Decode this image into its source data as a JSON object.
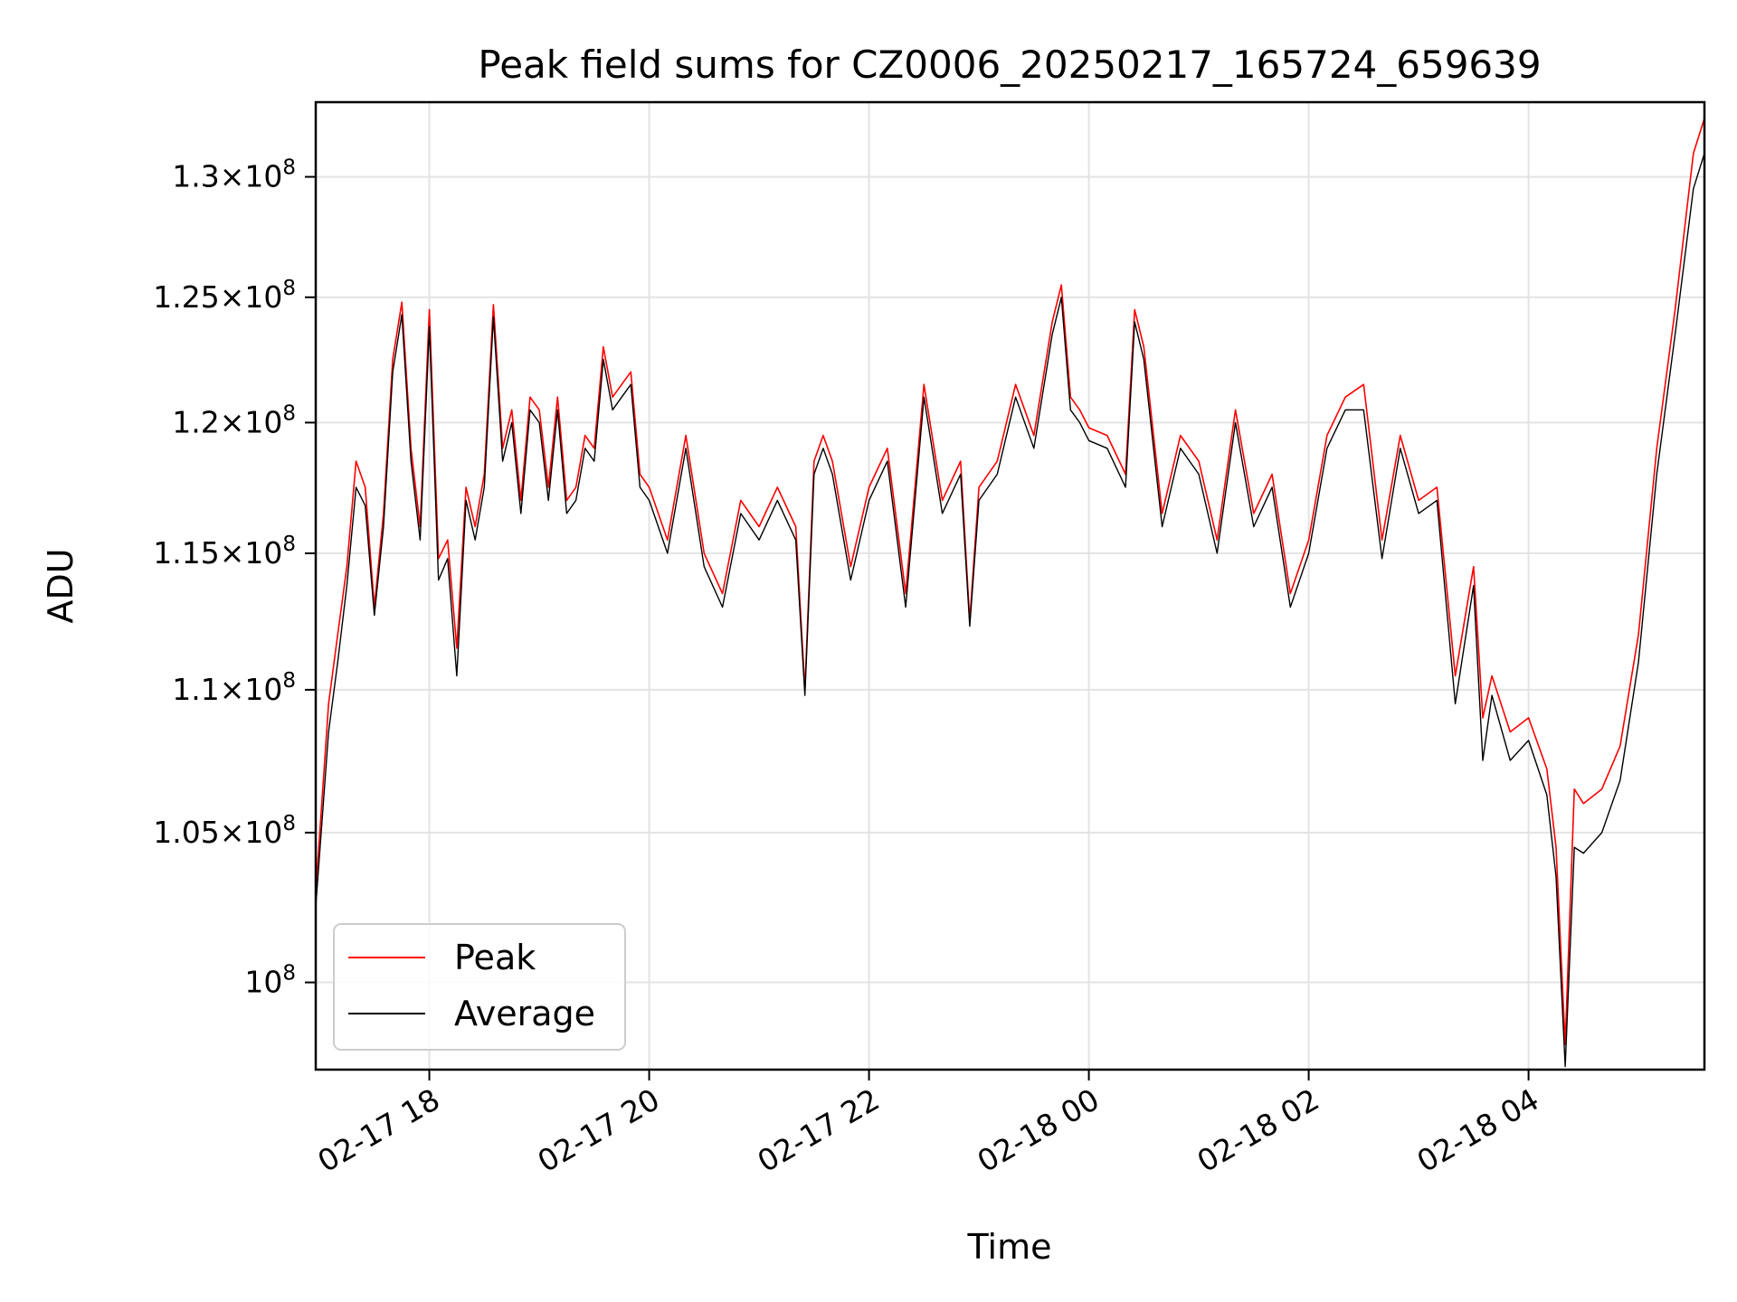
{
  "chart_data": {
    "type": "line",
    "title": "Peak field sums for CZ0006_20250217_165724_659639",
    "xlabel": "Time",
    "ylabel": "ADU",
    "y_scale": "log",
    "ylim": [
      97200000,
      133200000
    ],
    "xlim": [
      "02-17 16:58",
      "02-18 05:36"
    ],
    "grid": true,
    "legend_position": "lower-left",
    "x_ticks": [
      {
        "value": "02-17 18:00",
        "label": "02-17 18"
      },
      {
        "value": "02-17 20:00",
        "label": "02-17 20"
      },
      {
        "value": "02-17 22:00",
        "label": "02-17 22"
      },
      {
        "value": "02-18 00:00",
        "label": "02-18 00"
      },
      {
        "value": "02-18 02:00",
        "label": "02-18 02"
      },
      {
        "value": "02-18 04:00",
        "label": "02-18 04"
      }
    ],
    "y_ticks": [
      {
        "value": 100000000,
        "mant": "",
        "exp": "8"
      },
      {
        "value": 105000000,
        "mant": "1.05",
        "exp": "8"
      },
      {
        "value": 110000000,
        "mant": "1.1",
        "exp": "8"
      },
      {
        "value": 115000000,
        "mant": "1.15",
        "exp": "8"
      },
      {
        "value": 120000000,
        "mant": "1.2",
        "exp": "8"
      },
      {
        "value": 125000000,
        "mant": "1.25",
        "exp": "8"
      },
      {
        "value": 130000000,
        "mant": "1.3",
        "exp": "8"
      }
    ],
    "times": [
      "02-17 16:58",
      "02-17 17:05",
      "02-17 17:10",
      "02-17 17:15",
      "02-17 17:20",
      "02-17 17:25",
      "02-17 17:30",
      "02-17 17:35",
      "02-17 17:40",
      "02-17 17:45",
      "02-17 17:50",
      "02-17 17:55",
      "02-17 18:00",
      "02-17 18:05",
      "02-17 18:10",
      "02-17 18:15",
      "02-17 18:20",
      "02-17 18:25",
      "02-17 18:30",
      "02-17 18:35",
      "02-17 18:40",
      "02-17 18:45",
      "02-17 18:50",
      "02-17 18:55",
      "02-17 19:00",
      "02-17 19:05",
      "02-17 19:10",
      "02-17 19:15",
      "02-17 19:20",
      "02-17 19:25",
      "02-17 19:30",
      "02-17 19:35",
      "02-17 19:40",
      "02-17 19:45",
      "02-17 19:50",
      "02-17 19:55",
      "02-17 20:00",
      "02-17 20:10",
      "02-17 20:20",
      "02-17 20:30",
      "02-17 20:40",
      "02-17 20:50",
      "02-17 21:00",
      "02-17 21:10",
      "02-17 21:20",
      "02-17 21:25",
      "02-17 21:30",
      "02-17 21:35",
      "02-17 21:40",
      "02-17 21:50",
      "02-17 22:00",
      "02-17 22:10",
      "02-17 22:20",
      "02-17 22:30",
      "02-17 22:40",
      "02-17 22:50",
      "02-17 22:55",
      "02-17 23:00",
      "02-17 23:10",
      "02-17 23:20",
      "02-17 23:30",
      "02-17 23:40",
      "02-17 23:45",
      "02-17 23:50",
      "02-17 23:55",
      "02-18 00:00",
      "02-18 00:10",
      "02-18 00:20",
      "02-18 00:25",
      "02-18 00:30",
      "02-18 00:40",
      "02-18 00:50",
      "02-18 01:00",
      "02-18 01:10",
      "02-18 01:20",
      "02-18 01:30",
      "02-18 01:40",
      "02-18 01:50",
      "02-18 02:00",
      "02-18 02:10",
      "02-18 02:20",
      "02-18 02:30",
      "02-18 02:40",
      "02-18 02:50",
      "02-18 03:00",
      "02-18 03:10",
      "02-18 03:20",
      "02-18 03:30",
      "02-18 03:35",
      "02-18 03:40",
      "02-18 03:50",
      "02-18 04:00",
      "02-18 04:10",
      "02-18 04:15",
      "02-18 04:20",
      "02-18 04:25",
      "02-18 04:30",
      "02-18 04:40",
      "02-18 04:50",
      "02-18 05:00",
      "02-18 05:10",
      "02-18 05:20",
      "02-18 05:30",
      "02-18 05:36"
    ],
    "series": [
      {
        "name": "Peak",
        "color": "#ff0000",
        "values": [
          103000000,
          109500000,
          112000000,
          114500000,
          118500000,
          117500000,
          113000000,
          116500000,
          122500000,
          124800000,
          119000000,
          116000000,
          124500000,
          114800000,
          115500000,
          111500000,
          117500000,
          116000000,
          118000000,
          124700000,
          119000000,
          120500000,
          117000000,
          121000000,
          120500000,
          117500000,
          121000000,
          117000000,
          117500000,
          119500000,
          119000000,
          123000000,
          121000000,
          121500000,
          122000000,
          118000000,
          117500000,
          115500000,
          119500000,
          115000000,
          113500000,
          117000000,
          116000000,
          117500000,
          116000000,
          110000000,
          118500000,
          119500000,
          118500000,
          114500000,
          117500000,
          119000000,
          113500000,
          121500000,
          117000000,
          118500000,
          112500000,
          117500000,
          118500000,
          121500000,
          119500000,
          124000000,
          125500000,
          121000000,
          120500000,
          119800000,
          119500000,
          118000000,
          124500000,
          123000000,
          116500000,
          119500000,
          118500000,
          115500000,
          120500000,
          116500000,
          118000000,
          113500000,
          115500000,
          119500000,
          121000000,
          121500000,
          115500000,
          119500000,
          117000000,
          117500000,
          110500000,
          114500000,
          109000000,
          110500000,
          108500000,
          109000000,
          107200000,
          104500000,
          98000000,
          106500000,
          106000000,
          106500000,
          108000000,
          112000000,
          119000000,
          124500000,
          131000000,
          132500000
        ]
      },
      {
        "name": "Average",
        "color": "#000000",
        "values": [
          102500000,
          108500000,
          111000000,
          113800000,
          117500000,
          116800000,
          112700000,
          116000000,
          122000000,
          124300000,
          118500000,
          115500000,
          123800000,
          114000000,
          114800000,
          110500000,
          117000000,
          115500000,
          117500000,
          124200000,
          118500000,
          120000000,
          116500000,
          120500000,
          120000000,
          117000000,
          120500000,
          116500000,
          117000000,
          119000000,
          118500000,
          122500000,
          120500000,
          121000000,
          121500000,
          117500000,
          117000000,
          115000000,
          119000000,
          114500000,
          113000000,
          116500000,
          115500000,
          117000000,
          115500000,
          109800000,
          118000000,
          119000000,
          118000000,
          114000000,
          117000000,
          118500000,
          113000000,
          121000000,
          116500000,
          118000000,
          112300000,
          117000000,
          118000000,
          121000000,
          119000000,
          123500000,
          125000000,
          120500000,
          120000000,
          119300000,
          119000000,
          117500000,
          124000000,
          122500000,
          116000000,
          119000000,
          118000000,
          115000000,
          120000000,
          116000000,
          117500000,
          113000000,
          115000000,
          119000000,
          120500000,
          120500000,
          114800000,
          119000000,
          116500000,
          117000000,
          109500000,
          113800000,
          107500000,
          109800000,
          107500000,
          108200000,
          106300000,
          103500000,
          97300000,
          104500000,
          104300000,
          105000000,
          106800000,
          111000000,
          118000000,
          123500000,
          129500000,
          131000000
        ]
      }
    ]
  }
}
